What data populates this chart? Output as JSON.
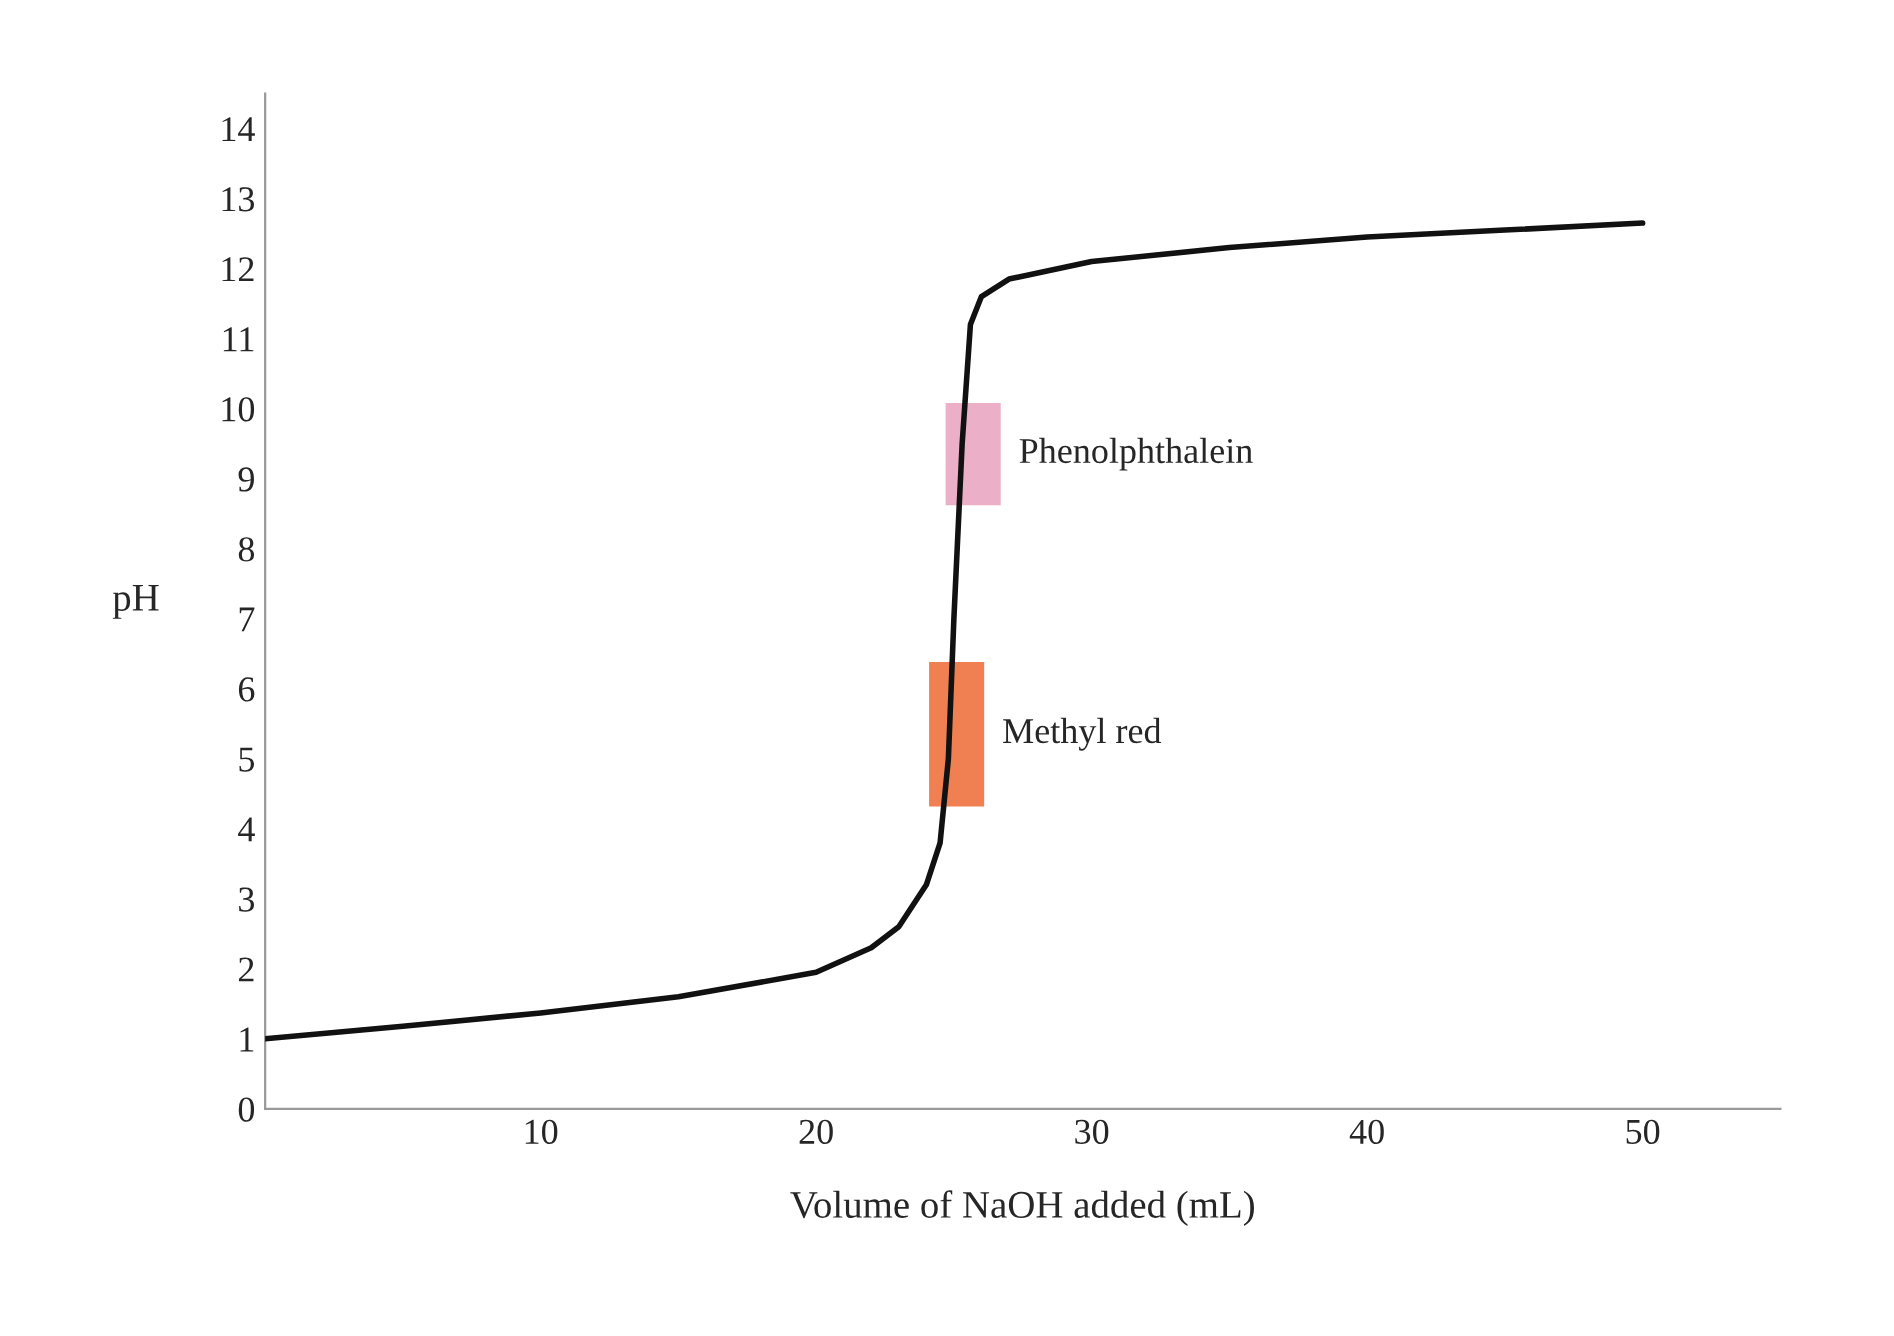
{
  "chart_data": {
    "type": "line",
    "xlabel": "Volume of NaOH added (mL)",
    "ylabel": "pH",
    "xlim": [
      0,
      55
    ],
    "ylim": [
      0,
      14.5
    ],
    "xticks": [
      10,
      20,
      30,
      40,
      50
    ],
    "yticks": [
      0,
      1,
      2,
      3,
      4,
      5,
      6,
      7,
      8,
      9,
      10,
      11,
      12,
      13,
      14
    ],
    "grid": false,
    "legend": false,
    "marker": "none",
    "line_style": "solid",
    "series": [
      {
        "color": "#111111",
        "x": [
          0,
          5,
          10,
          15,
          20,
          22,
          23,
          24,
          24.5,
          24.8,
          25,
          25.3,
          25.6,
          26,
          27,
          30,
          35,
          40,
          45,
          50
        ],
        "values": [
          1.0,
          1.18,
          1.37,
          1.6,
          1.95,
          2.3,
          2.6,
          3.2,
          3.8,
          5,
          7,
          9.5,
          11.2,
          11.6,
          11.85,
          12.1,
          12.3,
          12.45,
          12.55,
          12.65
        ]
      },
      {
        "type": "bar",
        "name": "Phenolphthalein",
        "color": "#e8a3be",
        "x": [
          25.7
        ],
        "base": [
          8.6
        ],
        "values": [
          1.5
        ]
      },
      {
        "type": "bar",
        "name": "Methyl red",
        "color": "#ee6a35",
        "x": [
          25.1
        ],
        "base": [
          4.3
        ],
        "values": [
          2.1
        ]
      }
    ]
  }
}
